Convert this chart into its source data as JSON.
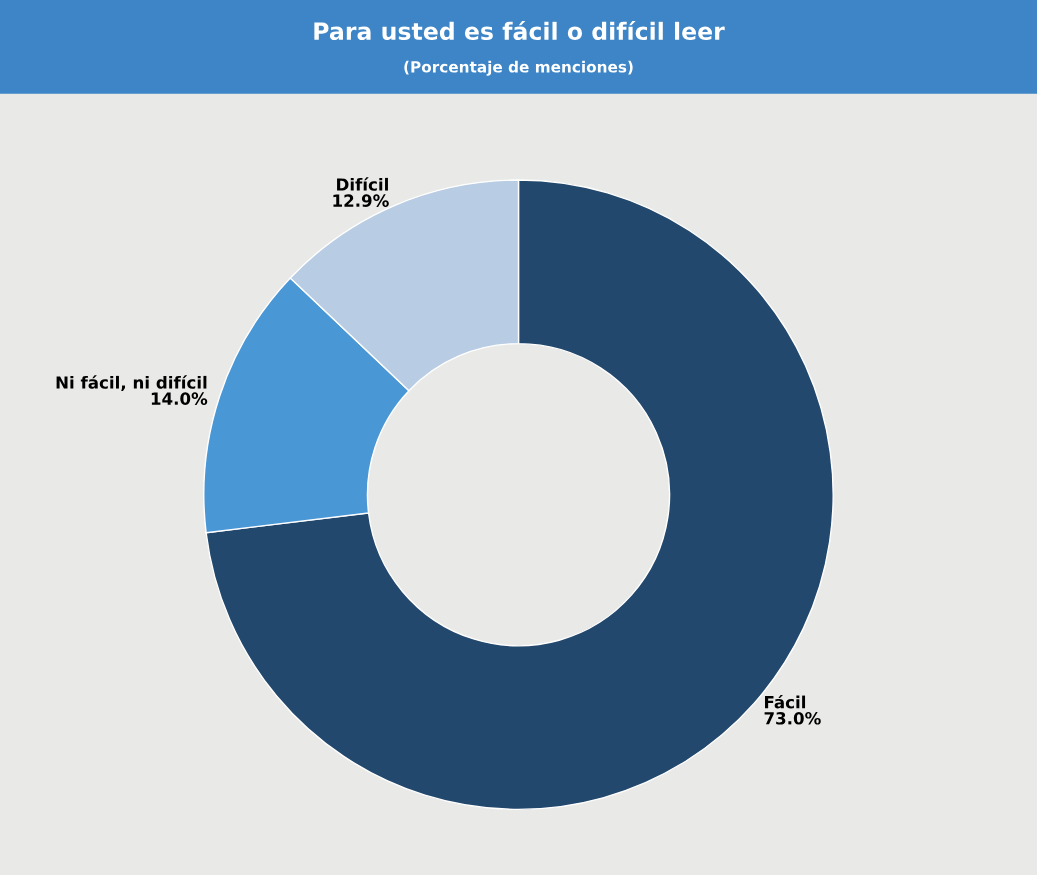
{
  "chart_data": {
    "type": "donut",
    "title": "Para usted es fácil o difícil leer",
    "subtitle": "(Porcentaje de menciones)",
    "categories": [
      "Fácil",
      "Ni fácil, ni difícil",
      "Difícil"
    ],
    "value_labels": [
      "73.0%",
      "14.0%",
      "12.9%"
    ],
    "values": [
      73.0,
      14.0,
      12.9
    ],
    "colors": [
      "#23486e",
      "#4a97d6",
      "#b8cce4"
    ],
    "legend": false
  }
}
